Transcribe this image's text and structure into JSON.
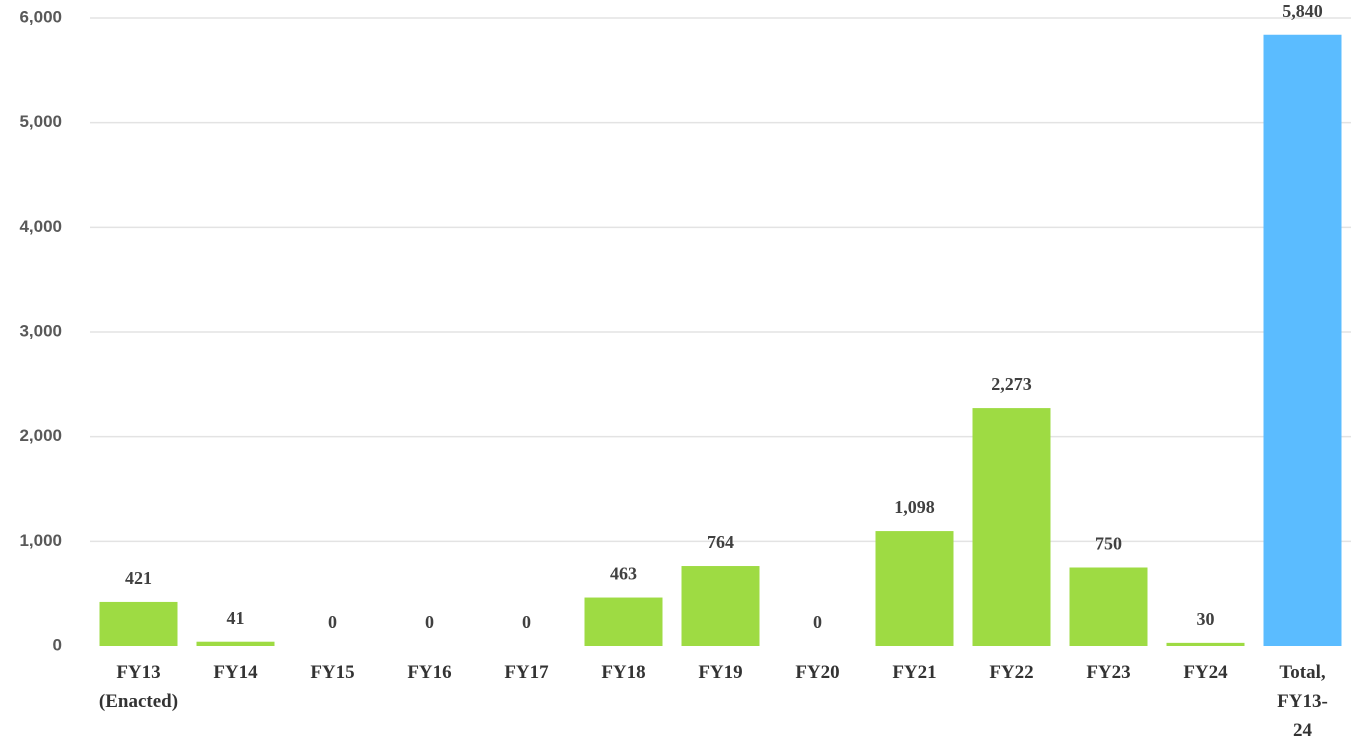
{
  "chart_data": {
    "type": "bar",
    "categories": [
      "FY13 (Enacted)",
      "FY14",
      "FY15",
      "FY16",
      "FY17",
      "FY18",
      "FY19",
      "FY20",
      "FY21",
      "FY22",
      "FY23",
      "FY24",
      "Total, FY13-24"
    ],
    "values": [
      421,
      41,
      0,
      0,
      0,
      463,
      764,
      0,
      1098,
      2273,
      750,
      30,
      5840
    ],
    "value_labels": [
      "421",
      "41",
      "0",
      "0",
      "0",
      "463",
      "764",
      "0",
      "1,098",
      "2,273",
      "750",
      "30",
      "5,840"
    ],
    "colors": [
      "#9edb43",
      "#9edb43",
      "#9edb43",
      "#9edb43",
      "#9edb43",
      "#9edb43",
      "#9edb43",
      "#9edb43",
      "#9edb43",
      "#9edb43",
      "#9edb43",
      "#9edb43",
      "#5bbcff"
    ],
    "ylim": [
      0,
      6000
    ],
    "yticks": [
      0,
      {
        "value": 1000,
        "label": "1,000"
      },
      {
        "value": 2000,
        "label": "2,000"
      },
      {
        "value": 3000,
        "label": "3,000"
      },
      {
        "value": 4000,
        "label": "4,000"
      },
      {
        "value": 5000,
        "label": "5,000"
      },
      {
        "value": 6000,
        "label": "6,000"
      }
    ],
    "grid": true
  }
}
